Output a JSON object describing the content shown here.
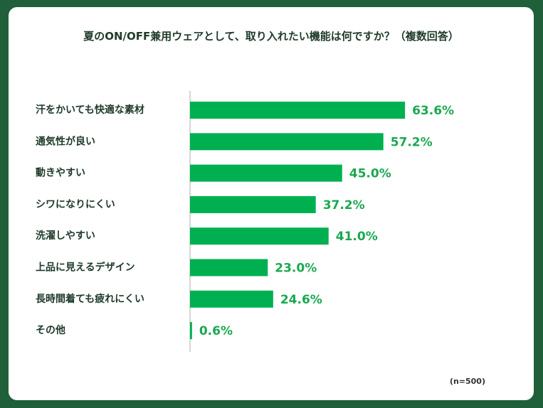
{
  "title": "夏のON/OFF兼用ウェアとして、取り入れたい機能は何ですか？（複数回答）",
  "note": "(n=500)",
  "colors": {
    "bar": "#00b050",
    "value_text": "#1aa84f",
    "frame": "#1f5f3a",
    "axis": "#c8c8c8"
  },
  "chart_data": {
    "type": "bar",
    "orientation": "horizontal",
    "title": "夏のON/OFF兼用ウェアとして、取り入れたい機能は何ですか？（複数回答）",
    "categories": [
      "汗をかいても快適な素材",
      "通気性が良い",
      "動きやすい",
      "シワになりにくい",
      "洗濯しやすい",
      "上品に見えるデザイン",
      "長時間着ても疲れにくい",
      "その他"
    ],
    "values": [
      63.6,
      57.2,
      45.0,
      37.2,
      41.0,
      23.0,
      24.6,
      0.6
    ],
    "labels": [
      "63.6%",
      "57.2%",
      "45.0%",
      "37.2%",
      "41.0%",
      "23.0%",
      "24.6%",
      "0.6%"
    ],
    "unit": "%",
    "xlim": [
      0,
      100
    ],
    "grid": false,
    "legend": "none"
  }
}
